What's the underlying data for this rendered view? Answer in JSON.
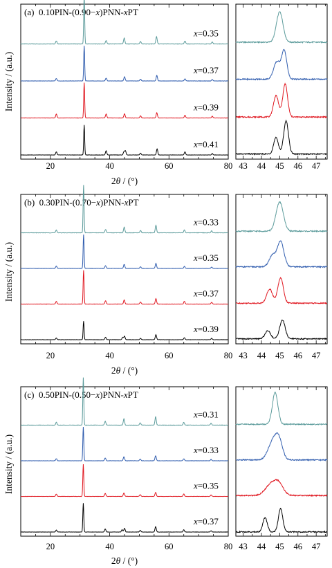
{
  "colors": {
    "series": [
      "#5a9a9a",
      "#2f5cae",
      "#e0161f",
      "#000000"
    ],
    "axis": "#000000",
    "background": "#ffffff"
  },
  "chart_data": [
    {
      "type": "line",
      "panel": "(a)",
      "title_prefix": "(a)",
      "title_main": "0.10PIN-(0.90−",
      "title_x1": "x",
      "title_mid": ")PNN-",
      "title_x2": "x",
      "title_end": "PT",
      "ylabel": "Intensity / (a.u.)",
      "xlabel_theta": "θ",
      "xlabel_pre": "2",
      "xlabel_post": " / (°)",
      "xlim": [
        10,
        80
      ],
      "zoom_xlim": [
        42.6,
        47.6
      ],
      "xticks": [
        20,
        40,
        60,
        80
      ],
      "zoom_xticks": [
        43,
        44,
        45,
        46,
        47
      ],
      "series": [
        {
          "name": "x=0.35",
          "label_x": "x",
          "label_val": "=0.35",
          "peaks": [
            [
              22.0,
              0.06
            ],
            [
              31.4,
              1.0
            ],
            [
              38.8,
              0.07
            ],
            [
              44.9,
              0.12
            ],
            [
              50.4,
              0.05
            ],
            [
              55.8,
              0.15
            ],
            [
              65.4,
              0.06
            ],
            [
              74.6,
              0.04
            ]
          ],
          "zoom_peaks": [
            [
              45.0,
              0.78,
              0.18
            ]
          ],
          "zoom_base": 0.08
        },
        {
          "name": "x=0.37",
          "label_x": "x",
          "label_val": "=0.37",
          "peaks": [
            [
              22.0,
              0.07
            ],
            [
              31.4,
              1.0
            ],
            [
              38.8,
              0.08
            ],
            [
              45.0,
              0.12
            ],
            [
              50.4,
              0.05
            ],
            [
              55.9,
              0.16
            ],
            [
              65.4,
              0.06
            ],
            [
              74.6,
              0.04
            ]
          ],
          "zoom_peaks": [
            [
              44.85,
              0.45,
              0.18
            ],
            [
              45.25,
              0.72,
              0.14
            ]
          ],
          "zoom_base": 0.08
        },
        {
          "name": "x=0.39",
          "label_x": "x",
          "label_val": "=0.39",
          "peaks": [
            [
              22.0,
              0.11
            ],
            [
              31.4,
              1.0
            ],
            [
              38.8,
              0.11
            ],
            [
              45.0,
              0.12
            ],
            [
              50.4,
              0.06
            ],
            [
              55.9,
              0.15
            ],
            [
              65.4,
              0.08
            ],
            [
              74.6,
              0.05
            ]
          ],
          "zoom_peaks": [
            [
              44.8,
              0.55,
              0.14
            ],
            [
              45.3,
              0.85,
              0.13
            ]
          ],
          "zoom_base": 0.06
        },
        {
          "name": "x=0.41",
          "label_x": "x",
          "label_val": "=0.41",
          "peaks": [
            [
              22.0,
              0.09
            ],
            [
              31.4,
              0.85
            ],
            [
              38.8,
              0.12
            ],
            [
              44.8,
              0.09
            ],
            [
              45.3,
              0.12
            ],
            [
              50.4,
              0.05
            ],
            [
              56.0,
              0.17
            ],
            [
              65.4,
              0.09
            ],
            [
              74.6,
              0.04
            ]
          ],
          "zoom_peaks": [
            [
              44.8,
              0.42,
              0.13
            ],
            [
              45.35,
              0.85,
              0.13
            ]
          ],
          "zoom_base": 0.06
        }
      ]
    },
    {
      "type": "line",
      "panel": "(b)",
      "title_prefix": "(b)",
      "title_main": "0.30PIN-(0.70−",
      "title_x1": "x",
      "title_mid": ")PNN-",
      "title_x2": "x",
      "title_end": "PT",
      "ylabel": "Intensity / (a.u.)",
      "xlabel_theta": "θ",
      "xlabel_pre": "2",
      "xlabel_post": " / (°)",
      "xlim": [
        10,
        80
      ],
      "zoom_xlim": [
        42.6,
        47.6
      ],
      "xticks": [
        20,
        40,
        60,
        80
      ],
      "zoom_xticks": [
        43,
        44,
        45,
        46,
        47
      ],
      "series": [
        {
          "name": "x=0.33",
          "label_x": "x",
          "label_val": "=0.33",
          "peaks": [
            [
              22.0,
              0.06
            ],
            [
              31.2,
              1.0
            ],
            [
              38.6,
              0.07
            ],
            [
              44.9,
              0.12
            ],
            [
              50.4,
              0.05
            ],
            [
              55.6,
              0.16
            ],
            [
              65.2,
              0.06
            ],
            [
              74.4,
              0.04
            ]
          ],
          "zoom_peaks": [
            [
              45.0,
              0.78,
              0.2
            ]
          ],
          "zoom_base": 0.08
        },
        {
          "name": "x=0.35",
          "label_x": "x",
          "label_val": "=0.35",
          "peaks": [
            [
              22.0,
              0.07
            ],
            [
              31.2,
              1.0
            ],
            [
              38.6,
              0.08
            ],
            [
              44.9,
              0.12
            ],
            [
              50.4,
              0.05
            ],
            [
              55.6,
              0.15
            ],
            [
              65.2,
              0.06
            ],
            [
              74.4,
              0.04
            ]
          ],
          "zoom_peaks": [
            [
              44.6,
              0.3,
              0.18
            ],
            [
              45.05,
              0.68,
              0.18
            ]
          ],
          "zoom_base": 0.08
        },
        {
          "name": "x=0.37",
          "label_x": "x",
          "label_val": "=0.37",
          "peaks": [
            [
              22.0,
              0.08
            ],
            [
              31.2,
              1.0
            ],
            [
              38.6,
              0.1
            ],
            [
              44.9,
              0.12
            ],
            [
              50.4,
              0.06
            ],
            [
              55.6,
              0.16
            ],
            [
              65.2,
              0.08
            ],
            [
              74.4,
              0.05
            ]
          ],
          "zoom_peaks": [
            [
              44.45,
              0.38,
              0.16
            ],
            [
              45.05,
              0.68,
              0.15
            ]
          ],
          "zoom_base": 0.06
        },
        {
          "name": "x=0.39",
          "label_x": "x",
          "label_val": "=0.39",
          "peaks": [
            [
              22.0,
              0.05
            ],
            [
              31.2,
              0.55
            ],
            [
              38.6,
              0.07
            ],
            [
              44.4,
              0.07
            ],
            [
              45.0,
              0.1
            ],
            [
              50.4,
              0.04
            ],
            [
              55.6,
              0.15
            ],
            [
              65.2,
              0.06
            ],
            [
              74.4,
              0.04
            ]
          ],
          "zoom_peaks": [
            [
              44.35,
              0.22,
              0.15
            ],
            [
              45.15,
              0.5,
              0.15
            ]
          ],
          "zoom_base": 0.06
        }
      ]
    },
    {
      "type": "line",
      "panel": "(c)",
      "title_prefix": "(c)",
      "title_main": "0.50PIN-(0.50−",
      "title_x1": "x",
      "title_mid": ")PNN-",
      "title_x2": "x",
      "title_end": "PT",
      "ylabel": "Intensity / (a.u.)",
      "xlabel_theta": "θ",
      "xlabel_pre": "2",
      "xlabel_post": " / (°)",
      "xlim": [
        10,
        80
      ],
      "zoom_xlim": [
        42.6,
        47.6
      ],
      "xticks": [
        20,
        40,
        60,
        80
      ],
      "zoom_xticks": [
        43,
        44,
        45,
        46,
        47
      ],
      "series": [
        {
          "name": "x=0.31",
          "label_x": "x",
          "label_val": "=0.31",
          "peaks": [
            [
              22.0,
              0.06
            ],
            [
              31.1,
              1.0
            ],
            [
              38.5,
              0.08
            ],
            [
              44.8,
              0.13
            ],
            [
              50.3,
              0.05
            ],
            [
              55.5,
              0.17
            ],
            [
              65.0,
              0.06
            ],
            [
              74.2,
              0.04
            ]
          ],
          "zoom_peaks": [
            [
              44.75,
              0.85,
              0.15
            ]
          ],
          "zoom_base": 0.06
        },
        {
          "name": "x=0.33",
          "label_x": "x",
          "label_val": "=0.33",
          "peaks": [
            [
              22.0,
              0.06
            ],
            [
              31.1,
              1.0
            ],
            [
              38.5,
              0.08
            ],
            [
              44.8,
              0.12
            ],
            [
              50.3,
              0.05
            ],
            [
              55.5,
              0.15
            ],
            [
              65.0,
              0.06
            ],
            [
              74.2,
              0.04
            ]
          ],
          "zoom_peaks": [
            [
              44.6,
              0.45,
              0.25
            ],
            [
              44.95,
              0.5,
              0.2
            ]
          ],
          "zoom_base": 0.06
        },
        {
          "name": "x=0.35",
          "label_x": "x",
          "label_val": "=0.35",
          "peaks": [
            [
              22.0,
              0.07
            ],
            [
              31.1,
              0.95
            ],
            [
              38.5,
              0.09
            ],
            [
              44.8,
              0.1
            ],
            [
              50.3,
              0.05
            ],
            [
              55.5,
              0.12
            ],
            [
              65.0,
              0.07
            ],
            [
              74.2,
              0.04
            ]
          ],
          "zoom_peaks": [
            [
              44.5,
              0.28,
              0.3
            ],
            [
              44.95,
              0.3,
              0.25
            ]
          ],
          "zoom_base": 0.06
        },
        {
          "name": "x=0.37",
          "label_x": "x",
          "label_val": "=0.37",
          "peaks": [
            [
              22.0,
              0.06
            ],
            [
              31.1,
              0.85
            ],
            [
              38.5,
              0.09
            ],
            [
              44.2,
              0.07
            ],
            [
              45.0,
              0.11
            ],
            [
              50.3,
              0.05
            ],
            [
              55.5,
              0.16
            ],
            [
              65.0,
              0.07
            ],
            [
              74.2,
              0.04
            ]
          ],
          "zoom_peaks": [
            [
              44.2,
              0.38,
              0.12
            ],
            [
              45.05,
              0.62,
              0.12
            ]
          ],
          "zoom_base": 0.04
        }
      ]
    }
  ]
}
